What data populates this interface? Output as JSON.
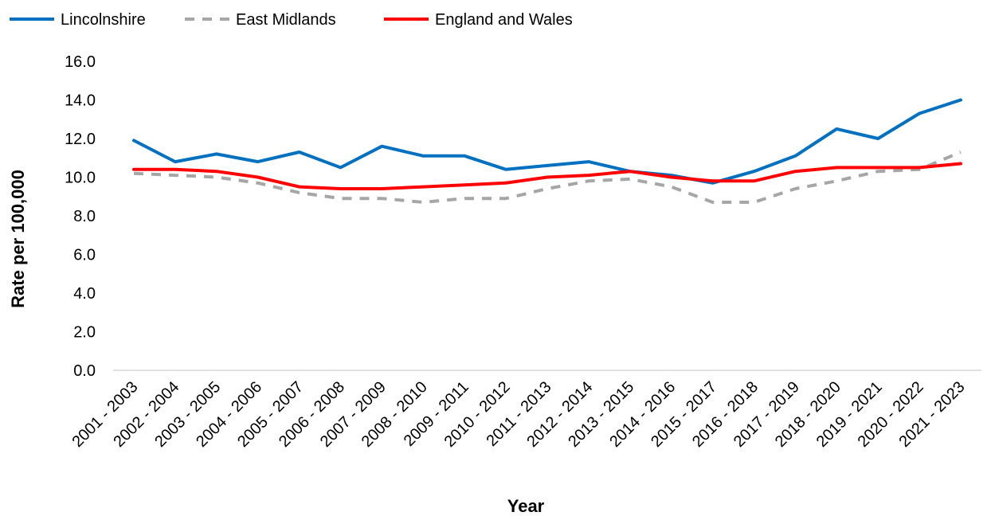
{
  "chart_data": {
    "type": "line",
    "categories": [
      "2001 - 2003",
      "2002 - 2004",
      "2003 - 2005",
      "2004 - 2006",
      "2005 - 2007",
      "2006 - 2008",
      "2007 - 2009",
      "2008 - 2010",
      "2009 - 2011",
      "2010 - 2012",
      "2011 - 2013",
      "2012 - 2014",
      "2013 - 2015",
      "2014 - 2016",
      "2015 - 2017",
      "2016 - 2018",
      "2017 - 2019",
      "2018 - 2020",
      "2019 - 2021",
      "2020 - 2022",
      "2021 - 2023"
    ],
    "series": [
      {
        "name": "Lincolnshire",
        "color": "#0070C0",
        "style": "solid",
        "values": [
          11.9,
          10.8,
          11.2,
          10.8,
          11.3,
          10.5,
          11.6,
          11.1,
          11.1,
          10.4,
          10.6,
          10.8,
          10.3,
          10.1,
          9.7,
          10.3,
          11.1,
          12.5,
          12.0,
          13.3,
          14.0
        ]
      },
      {
        "name": "East Midlands",
        "color": "#A6A6A6",
        "style": "dashed",
        "values": [
          10.2,
          10.1,
          10.0,
          9.7,
          9.2,
          8.9,
          8.9,
          8.7,
          8.9,
          8.9,
          9.4,
          9.8,
          9.9,
          9.5,
          8.7,
          8.7,
          9.4,
          9.8,
          10.3,
          10.4,
          11.3
        ]
      },
      {
        "name": "England and Wales",
        "color": "#FF0000",
        "style": "solid",
        "values": [
          10.4,
          10.4,
          10.3,
          10.0,
          9.5,
          9.4,
          9.4,
          9.5,
          9.6,
          9.7,
          10.0,
          10.1,
          10.3,
          10.0,
          9.8,
          9.8,
          10.3,
          10.5,
          10.5,
          10.5,
          10.7
        ]
      }
    ],
    "xlabel": "Year",
    "ylabel": "Rate per 100,000",
    "ylim": [
      0,
      16
    ],
    "yticks": [
      "0.0",
      "2.0",
      "4.0",
      "6.0",
      "8.0",
      "10.0",
      "12.0",
      "14.0",
      "16.0"
    ],
    "grid": false,
    "legend_position": "top-left"
  }
}
